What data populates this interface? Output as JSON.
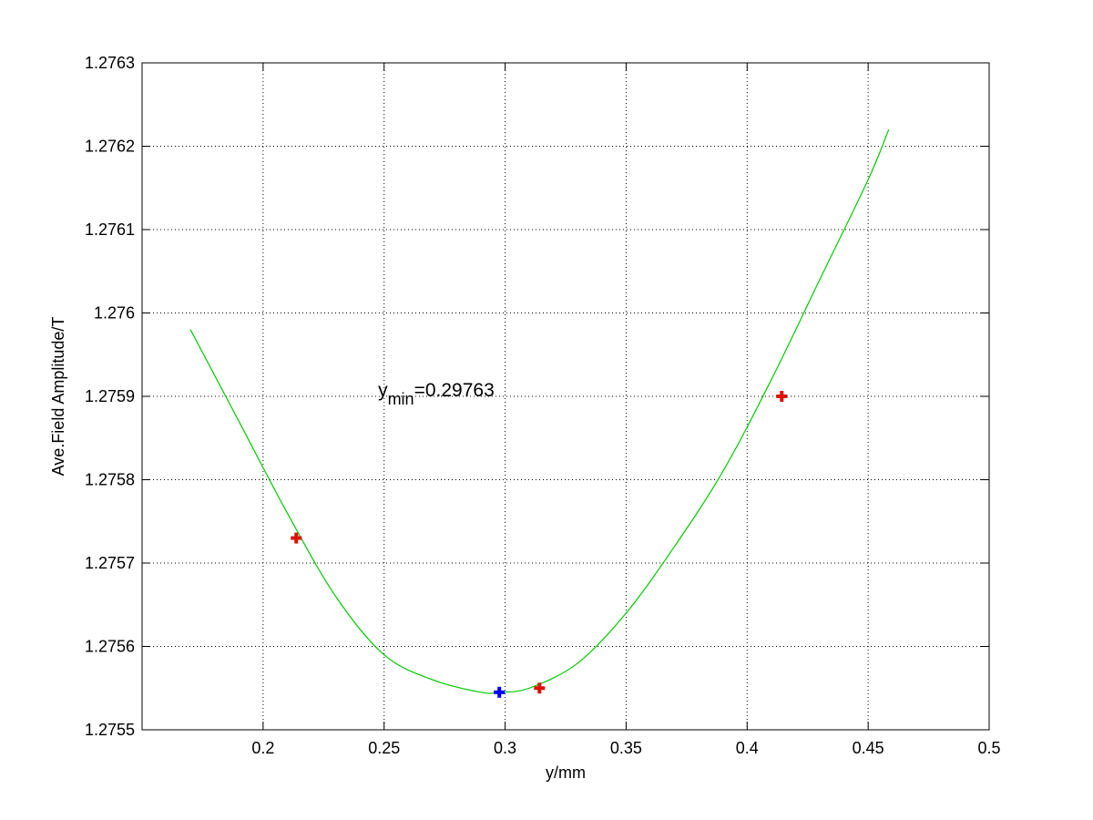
{
  "chart_data": {
    "type": "line",
    "title": "",
    "xlabel": "y/mm",
    "ylabel": "Ave.Field Amplitude/T",
    "xlim": [
      0.15,
      0.5
    ],
    "ylim": [
      1.2755,
      1.2763
    ],
    "x_ticks": [
      0.2,
      0.25,
      0.3,
      0.35,
      0.4,
      0.45,
      0.5
    ],
    "x_tick_labels": [
      "0.2",
      "0.25",
      "0.3",
      "0.35",
      "0.4",
      "0.45",
      "0.5"
    ],
    "y_ticks": [
      1.2755,
      1.2756,
      1.2757,
      1.2758,
      1.2759,
      1.276,
      1.2761,
      1.2762,
      1.2763
    ],
    "y_tick_labels": [
      "1.2755",
      "1.2756",
      "1.2757",
      "1.2758",
      "1.2759",
      "1.276",
      "1.2761",
      "1.2762",
      "1.2763"
    ],
    "grid": true,
    "series": [
      {
        "kind": "fit-curve",
        "color": "#00cc00",
        "x": [
          0.17,
          0.19,
          0.21,
          0.23,
          0.25,
          0.27,
          0.29,
          0.2976,
          0.31,
          0.33,
          0.35,
          0.37,
          0.39,
          0.41,
          0.43,
          0.45,
          0.4585
        ],
        "y": [
          1.27598,
          1.27587,
          1.27576,
          1.27566,
          1.27559,
          1.27556,
          1.275545,
          1.275545,
          1.27555,
          1.27558,
          1.27564,
          1.27572,
          1.27581,
          1.27592,
          1.27604,
          1.27616,
          1.27622
        ]
      },
      {
        "kind": "data-points",
        "color": "#dd1100",
        "marker": "plus",
        "x": [
          0.2137,
          0.3142,
          0.4143
        ],
        "y": [
          1.27573,
          1.27555,
          1.2759
        ]
      },
      {
        "kind": "minimum-point",
        "color": "#0000ff",
        "marker": "plus",
        "x": [
          0.2976
        ],
        "y": [
          1.275545
        ]
      }
    ],
    "annotation": {
      "base": "y",
      "subscript": "min",
      "value_text": "=0.29763",
      "x": 0.2475,
      "y": 1.2759
    }
  }
}
